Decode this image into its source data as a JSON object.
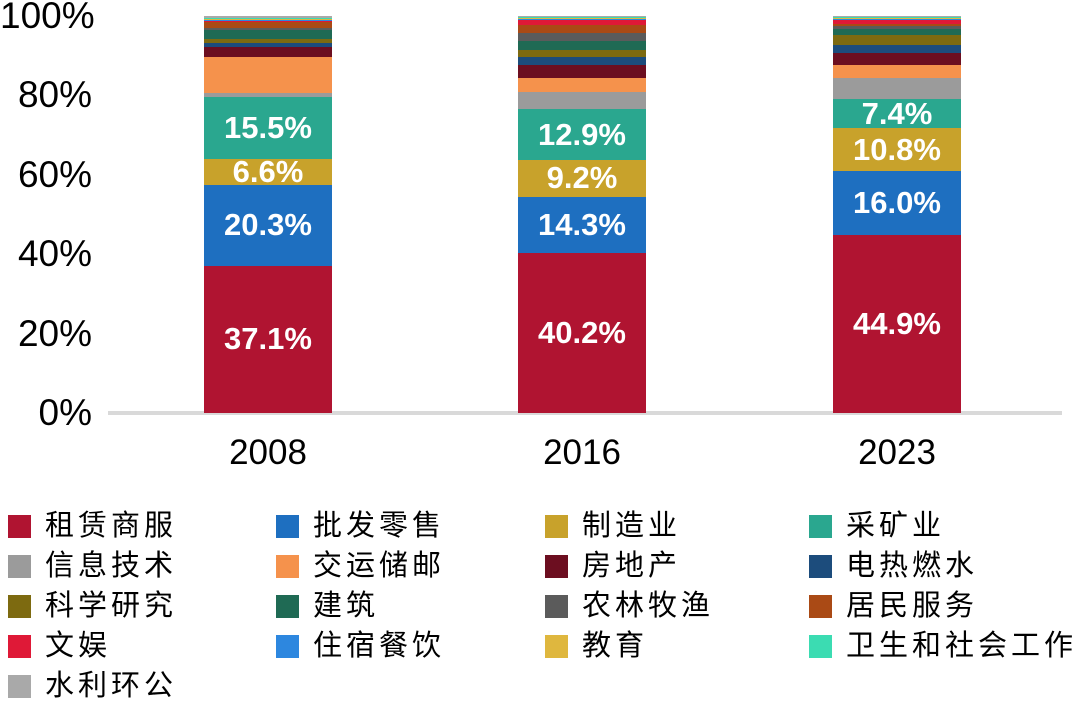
{
  "chart_data": {
    "type": "bar",
    "stacked": true,
    "percent_stacked": true,
    "title": "",
    "xlabel": "",
    "ylabel": "",
    "ylim": [
      0,
      100
    ],
    "grid": false,
    "legend_position": "bottom",
    "categories": [
      "2008",
      "2016",
      "2023"
    ],
    "y_ticks": [
      "100%",
      "80%",
      "60%",
      "40%",
      "20%",
      "0%"
    ],
    "series": [
      {
        "name": "租赁商服",
        "color": "#b01431",
        "values": [
          37.1,
          40.2,
          44.9
        ],
        "labels": [
          "37.1%",
          "40.2%",
          "44.9%"
        ]
      },
      {
        "name": "批发零售",
        "color": "#1e6fc0",
        "values": [
          20.3,
          14.3,
          16.0
        ],
        "labels": [
          "20.3%",
          "14.3%",
          "16.0%"
        ]
      },
      {
        "name": "制造业",
        "color": "#c8a22b",
        "values": [
          6.6,
          9.2,
          10.8
        ],
        "labels": [
          "6.6%",
          "9.2%",
          "10.8%"
        ]
      },
      {
        "name": "采矿业",
        "color": "#2aa78f",
        "values": [
          15.5,
          12.9,
          7.4
        ],
        "labels": [
          "15.5%",
          "12.9%",
          "7.4%"
        ]
      },
      {
        "name": "信息技术",
        "color": "#9b9b9b",
        "values": [
          1.0,
          4.3,
          5.3
        ]
      },
      {
        "name": "交运储邮",
        "color": "#f5924c",
        "values": [
          9.1,
          3.6,
          3.3
        ]
      },
      {
        "name": "房地产",
        "color": "#6c0e20",
        "values": [
          2.6,
          3.2,
          2.9
        ]
      },
      {
        "name": "电热燃水",
        "color": "#1c4c7c",
        "values": [
          1.1,
          2.0,
          2.1
        ]
      },
      {
        "name": "科学研究",
        "color": "#7d6a10",
        "values": [
          1.0,
          1.8,
          2.4
        ]
      },
      {
        "name": "建筑",
        "color": "#1f6a54",
        "values": [
          2.3,
          2.3,
          1.6
        ]
      },
      {
        "name": "农林牧渔",
        "color": "#5b5b5b",
        "values": [
          0.4,
          1.9,
          0.8
        ]
      },
      {
        "name": "居民服务",
        "color": "#aa4a15",
        "values": [
          1.5,
          2.0,
          0.5
        ]
      },
      {
        "name": "文娱",
        "color": "#df1937",
        "values": [
          0.3,
          1.3,
          0.9
        ]
      },
      {
        "name": "住宿餐饮",
        "color": "#2d87df",
        "values": [
          0.3,
          0.4,
          0.3
        ]
      },
      {
        "name": "教育",
        "color": "#dfb73e",
        "values": [
          0.2,
          0.2,
          0.2
        ]
      },
      {
        "name": "卫生和社会工作",
        "color": "#3bdcb2",
        "values": [
          0.2,
          0.2,
          0.3
        ]
      },
      {
        "name": "水利环公",
        "color": "#a9a9a9",
        "values": [
          0.5,
          0.2,
          0.3
        ]
      }
    ]
  },
  "legend": {
    "items": [
      {
        "label": "租赁商服",
        "color": "#b01431"
      },
      {
        "label": "批发零售",
        "color": "#1e6fc0"
      },
      {
        "label": "制造业",
        "color": "#c8a22b"
      },
      {
        "label": "采矿业",
        "color": "#2aa78f"
      },
      {
        "label": "信息技术",
        "color": "#9b9b9b"
      },
      {
        "label": "交运储邮",
        "color": "#f5924c"
      },
      {
        "label": "房地产",
        "color": "#6c0e20"
      },
      {
        "label": "电热燃水",
        "color": "#1c4c7c"
      },
      {
        "label": "科学研究",
        "color": "#7d6a10"
      },
      {
        "label": "建筑",
        "color": "#1f6a54"
      },
      {
        "label": "农林牧渔",
        "color": "#5b5b5b"
      },
      {
        "label": "居民服务",
        "color": "#aa4a15"
      },
      {
        "label": "文娱",
        "color": "#df1937"
      },
      {
        "label": "住宿餐饮",
        "color": "#2d87df"
      },
      {
        "label": "教育",
        "color": "#dfb73e"
      },
      {
        "label": "卫生和社会工作",
        "color": "#3bdcb2"
      },
      {
        "label": "水利环公",
        "color": "#a9a9a9"
      }
    ]
  },
  "colors": {
    "axis_line": "#d9d9d9",
    "bar_label_text": "#ffffff",
    "tick_text": "#000000"
  }
}
